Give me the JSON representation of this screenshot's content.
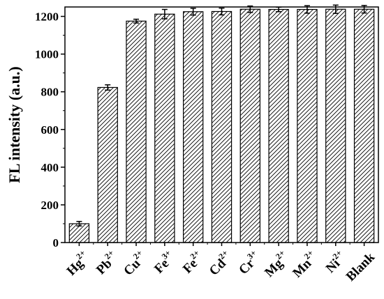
{
  "chart_data": {
    "type": "bar",
    "ylabel": "FL intensity (a.u.)",
    "xlabel": "",
    "ylim": [
      0,
      1250
    ],
    "yticks": [
      "0",
      "200",
      "400",
      "600",
      "800",
      "1000",
      "1200"
    ],
    "bar_fill": "diagonal-hatch",
    "bar_color": "#000000",
    "categories": [
      {
        "base": "Hg",
        "sup": "2+"
      },
      {
        "base": "Pb",
        "sup": "2+"
      },
      {
        "base": "Cu",
        "sup": "2+"
      },
      {
        "base": "Fe",
        "sup": "3+"
      },
      {
        "base": "Fe",
        "sup": "2+"
      },
      {
        "base": "Cd",
        "sup": "2+"
      },
      {
        "base": "Cr",
        "sup": "3+"
      },
      {
        "base": "Mg",
        "sup": "2+"
      },
      {
        "base": "Mn",
        "sup": "2+"
      },
      {
        "base": "Ni",
        "sup": "2+"
      },
      {
        "base": "Blank",
        "sup": ""
      }
    ],
    "values": [
      100,
      823,
      1175,
      1212,
      1225,
      1226,
      1238,
      1237,
      1237,
      1238,
      1238
    ],
    "errors": [
      12,
      14,
      10,
      25,
      18,
      18,
      17,
      12,
      20,
      22,
      20
    ]
  }
}
